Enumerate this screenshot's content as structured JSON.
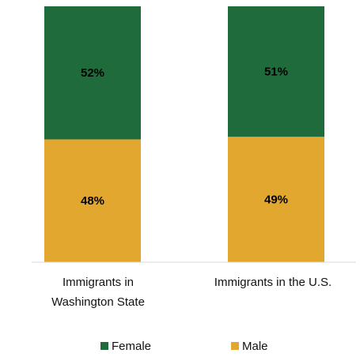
{
  "chart_data": {
    "type": "bar",
    "stacked": true,
    "categories": [
      [
        "Immigrants in",
        "Washington State"
      ],
      [
        "Immigrants in the U.S."
      ]
    ],
    "series": [
      {
        "name": "Male",
        "values": [
          48,
          49
        ],
        "labels": [
          "48%",
          "49%"
        ],
        "color": "#e2a72f"
      },
      {
        "name": "Female",
        "values": [
          52,
          51
        ],
        "labels": [
          "52%",
          "51%"
        ],
        "color": "#1f6b3b"
      }
    ],
    "ylim": [
      0,
      100
    ],
    "grid": false,
    "legend": "bottom",
    "legend_order": [
      "Female",
      "Male"
    ]
  }
}
